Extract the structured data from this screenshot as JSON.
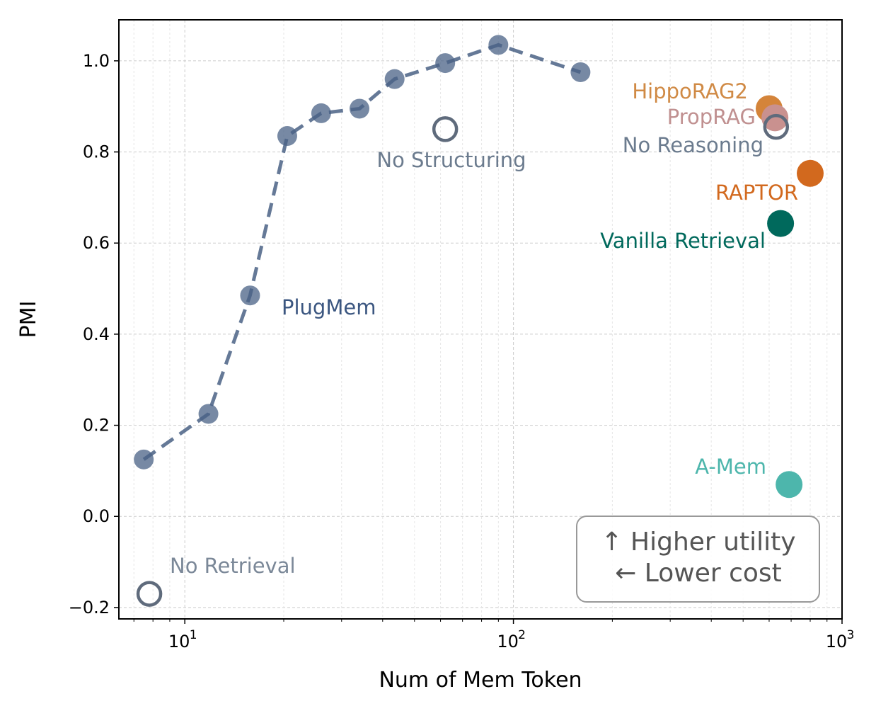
{
  "chart_data": {
    "type": "scatter",
    "xlabel": "Num of Mem Token",
    "ylabel": "PMI",
    "xscale": "log",
    "xlim": [
      6.3,
      1000
    ],
    "ylim": [
      -0.225,
      1.09
    ],
    "grid": true,
    "x_ticks": [
      {
        "value": 10,
        "base": "10",
        "exp": "1"
      },
      {
        "value": 100,
        "base": "10",
        "exp": "2"
      },
      {
        "value": 1000,
        "base": "10",
        "exp": "3"
      }
    ],
    "y_ticks": [
      {
        "value": -0.2,
        "label": "−0.2"
      },
      {
        "value": 0.0,
        "label": "0.0"
      },
      {
        "value": 0.2,
        "label": "0.2"
      },
      {
        "value": 0.4,
        "label": "0.4"
      },
      {
        "value": 0.6,
        "label": "0.6"
      },
      {
        "value": 0.8,
        "label": "0.8"
      },
      {
        "value": 1.0,
        "label": "1.0"
      }
    ],
    "series": [
      {
        "name": "PlugMem",
        "color": "#4a6285",
        "line": "dashed",
        "points": [
          {
            "x": 7.5,
            "y": 0.125
          },
          {
            "x": 11.8,
            "y": 0.225
          },
          {
            "x": 15.8,
            "y": 0.485
          },
          {
            "x": 20.5,
            "y": 0.835
          },
          {
            "x": 26.0,
            "y": 0.885
          },
          {
            "x": 34.0,
            "y": 0.895
          },
          {
            "x": 43.5,
            "y": 0.96
          },
          {
            "x": 62.0,
            "y": 0.995
          },
          {
            "x": 90.0,
            "y": 1.035
          },
          {
            "x": 160.0,
            "y": 0.975
          }
        ]
      }
    ],
    "baselines": [
      {
        "name": "HippoRAG2",
        "x": 600,
        "y": 0.895,
        "color": "#d4843a",
        "style": "filled"
      },
      {
        "name": "PropRAG",
        "x": 625,
        "y": 0.875,
        "color": "#c9918f",
        "style": "filled"
      },
      {
        "name": "No Reasoning",
        "x": 630,
        "y": 0.855,
        "color": "#5f6b7c",
        "style": "hollow"
      },
      {
        "name": "RAPTOR",
        "x": 800,
        "y": 0.753,
        "color": "#d2691e",
        "style": "filled"
      },
      {
        "name": "Vanilla Retrieval",
        "x": 650,
        "y": 0.643,
        "color": "#00695c",
        "style": "filled"
      },
      {
        "name": "A-Mem",
        "x": 690,
        "y": 0.07,
        "color": "#4db6ac",
        "style": "filled"
      },
      {
        "name": "No Structuring",
        "x": 62,
        "y": 0.85,
        "color": "#5f6b7c",
        "style": "hollow"
      },
      {
        "name": "No Retrieval",
        "x": 7.8,
        "y": -0.17,
        "color": "#5f6b7c",
        "style": "hollow"
      }
    ],
    "annotations": [
      {
        "text": "PlugMem",
        "color": "#3b5680"
      },
      {
        "text": "HippoRAG2",
        "color": "#d08a45"
      },
      {
        "text": "PropRAG",
        "color": "#c09090"
      },
      {
        "text": "No Reasoning",
        "color": "#6b7b8e"
      },
      {
        "text": "RAPTOR",
        "color": "#d2691e"
      },
      {
        "text": "Vanilla Retrieval",
        "color": "#00695c"
      },
      {
        "text": "A-Mem",
        "color": "#4db6ac"
      },
      {
        "text": "No Structuring",
        "color": "#6b7b8e"
      },
      {
        "text": "No Retrieval",
        "color": "#7b8898"
      }
    ],
    "note_box": {
      "line1": "↑ Higher utility",
      "line2": "← Lower cost",
      "position": "bottom-right"
    }
  }
}
